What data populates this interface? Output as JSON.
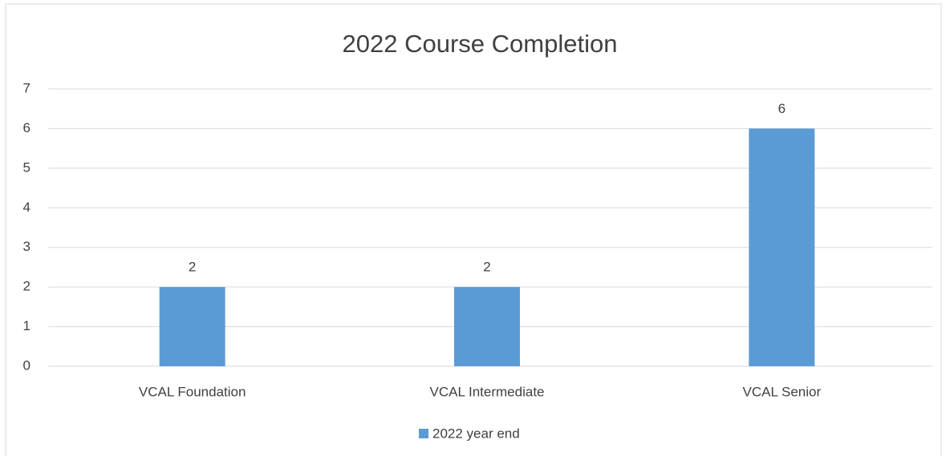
{
  "chart_data": {
    "type": "bar",
    "title": "2022 Course Completion",
    "categories": [
      "VCAL Foundation",
      "VCAL Intermediate",
      "VCAL Senior"
    ],
    "series": [
      {
        "name": "2022 year end",
        "color": "#5b9bd5",
        "values": [
          2,
          2,
          6
        ]
      }
    ],
    "ylim": [
      0,
      7
    ],
    "yticks": [
      0,
      1,
      2,
      3,
      4,
      5,
      6,
      7
    ],
    "grid": true,
    "legend": "bottom"
  }
}
